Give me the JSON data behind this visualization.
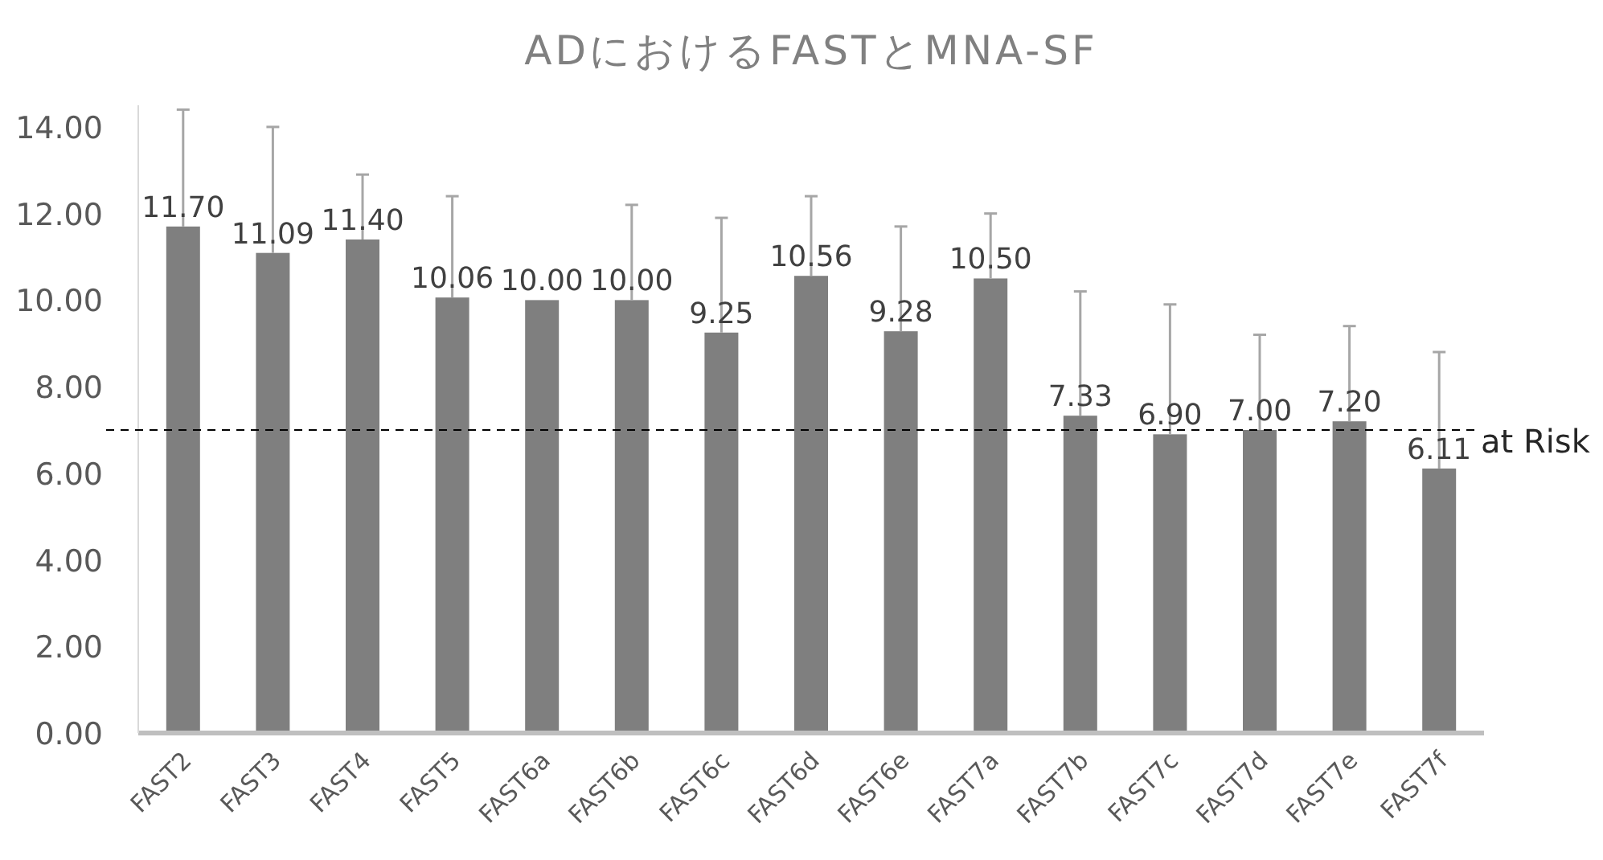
{
  "chart_data": {
    "type": "bar",
    "title": "ADにおけるFASTとMNA-SF",
    "categories": [
      "FAST2",
      "FAST3",
      "FAST4",
      "FAST5",
      "FAST6a",
      "FAST6b",
      "FAST6c",
      "FAST6d",
      "FAST6e",
      "FAST7a",
      "FAST7b",
      "FAST7c",
      "FAST7d",
      "FAST7e",
      "FAST7f"
    ],
    "values": [
      11.7,
      11.09,
      11.4,
      10.06,
      10.0,
      10.0,
      9.25,
      10.56,
      9.28,
      10.5,
      7.33,
      6.9,
      7.0,
      7.2,
      6.11
    ],
    "value_labels": [
      "11.70",
      "11.09",
      "11.40",
      "10.06",
      "10.00",
      "10.00",
      "9.25",
      "10.56",
      "9.28",
      "10.50",
      "7.33",
      "6.90",
      "7.00",
      "7.20",
      "6.11"
    ],
    "errors": [
      [
        11.7,
        14.4
      ],
      [
        11.09,
        14.0
      ],
      [
        11.4,
        12.9
      ],
      [
        10.06,
        12.4
      ],
      null,
      [
        10.0,
        12.2
      ],
      [
        9.25,
        11.9
      ],
      [
        10.56,
        12.4
      ],
      [
        9.28,
        11.7
      ],
      [
        10.5,
        12.0
      ],
      [
        7.33,
        10.2
      ],
      [
        6.9,
        9.9
      ],
      [
        7.0,
        9.2
      ],
      [
        7.2,
        9.4
      ],
      [
        6.11,
        8.8
      ]
    ],
    "color": "#7f7f7f",
    "ylim": [
      0,
      14.5
    ],
    "yticks": [
      {
        "value": 0,
        "label": "0.00"
      },
      {
        "value": 2,
        "label": "2.00"
      },
      {
        "value": 4,
        "label": "4.00"
      },
      {
        "value": 6,
        "label": "6.00"
      },
      {
        "value": 8,
        "label": "8.00"
      },
      {
        "value": 10,
        "label": "10.00"
      },
      {
        "value": 12,
        "label": "12.00"
      },
      {
        "value": 14,
        "label": "14.00"
      }
    ],
    "ref_lines": [
      {
        "axis": "y",
        "value": 7,
        "label": "at Risk",
        "color": "#000000",
        "line_style": "dashed"
      }
    ]
  }
}
